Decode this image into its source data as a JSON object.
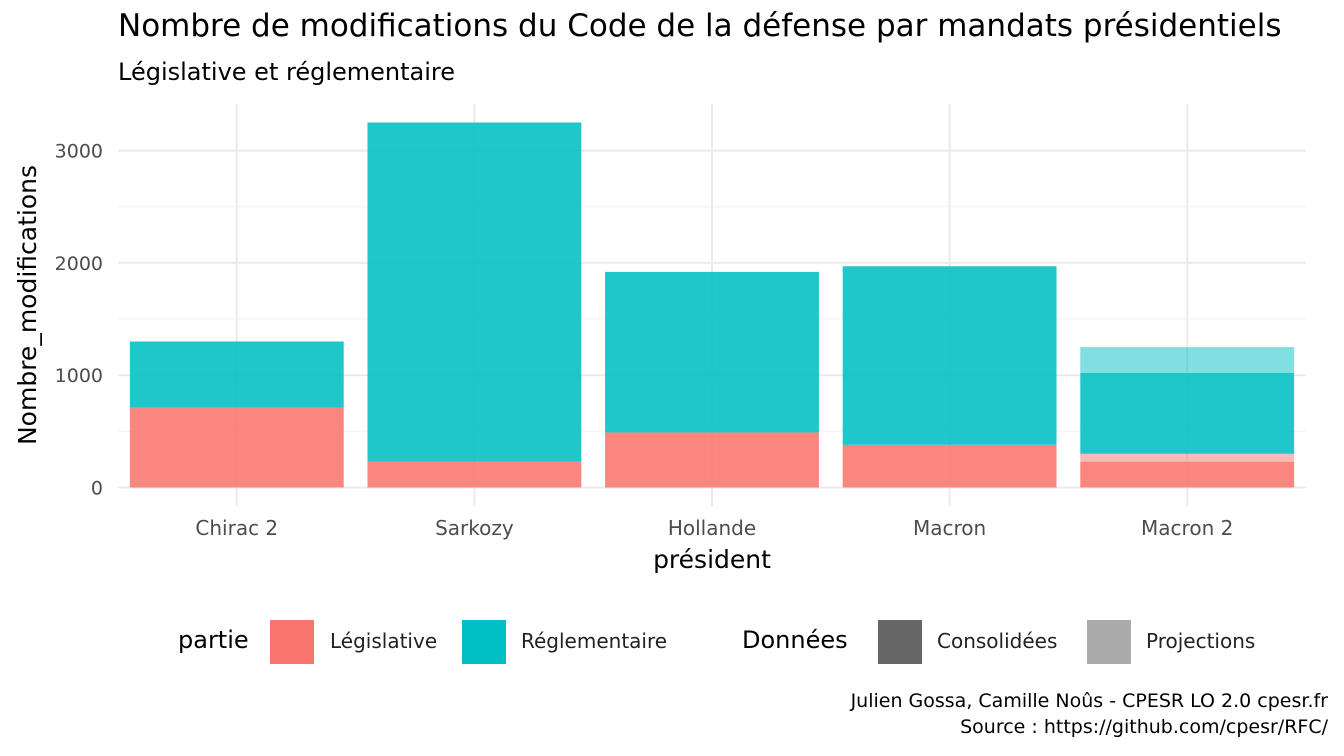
{
  "chart_data": {
    "type": "bar",
    "stacked": true,
    "title": "Nombre de modifications du Code de la défense par mandats présidentiels",
    "subtitle": "Législative et réglementaire",
    "xlabel": "président",
    "ylabel": "Nombre_modifications",
    "categories": [
      "Chirac 2",
      "Sarkozy",
      "Hollande",
      "Macron",
      "Macron 2"
    ],
    "ylim": [
      0,
      3250
    ],
    "yticks": [
      0,
      1000,
      2000,
      3000
    ],
    "grid": true,
    "legend_position": "bottom",
    "series": [
      {
        "name": "Législative",
        "donnees": "Consolidées",
        "color": "#F8766D",
        "values": [
          710,
          230,
          490,
          380,
          230
        ]
      },
      {
        "name": "Législative",
        "donnees": "Projections",
        "color": "#F8766D",
        "values": [
          0,
          0,
          0,
          0,
          70
        ]
      },
      {
        "name": "Réglementaire",
        "donnees": "Consolidées",
        "color": "#00BFC4",
        "values": [
          590,
          3020,
          1430,
          1590,
          720
        ]
      },
      {
        "name": "Réglementaire",
        "donnees": "Projections",
        "color": "#00BFC4",
        "values": [
          0,
          0,
          0,
          0,
          230
        ]
      }
    ],
    "legends": [
      {
        "title": "partie",
        "entries": [
          {
            "label": "Législative",
            "color": "#F8766D"
          },
          {
            "label": "Réglementaire",
            "color": "#00BFC4"
          }
        ]
      },
      {
        "title": "Données",
        "entries": [
          {
            "label": "Consolidées",
            "color": "#666666"
          },
          {
            "label": "Projections",
            "color": "#ABABAB"
          }
        ]
      }
    ],
    "caption": [
      "Julien Gossa, Camille Noûs - CPESR LO 2.0 cpesr.fr",
      "Source : https://github.com/cpesr/RFC/"
    ]
  }
}
